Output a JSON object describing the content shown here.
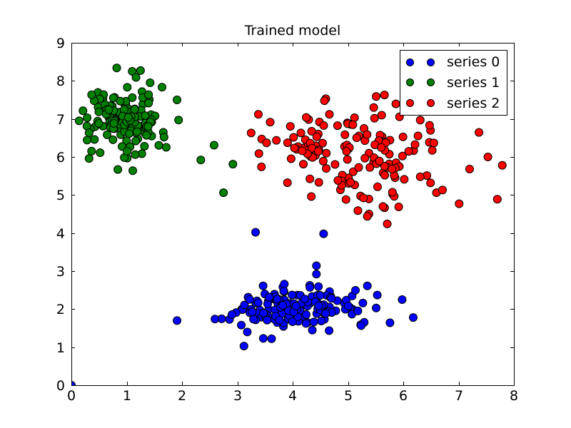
{
  "figure": {
    "background": "#ffffff",
    "frame_color": "#000000"
  },
  "chart_data": {
    "type": "scatter",
    "title": "Trained model",
    "xlabel": "",
    "ylabel": "",
    "xlim": [
      0,
      8
    ],
    "ylim": [
      0,
      9
    ],
    "xticks": [
      0,
      1,
      2,
      3,
      4,
      5,
      6,
      7,
      8
    ],
    "yticks": [
      0,
      1,
      2,
      3,
      4,
      5,
      6,
      7,
      8,
      9
    ],
    "grid": false,
    "tick_direction": "in",
    "marker": {
      "shape": "circle",
      "radius_px": 5.5,
      "edge_color": "#000000"
    },
    "legend": {
      "position": "upper right",
      "markers_per_entry": 2
    },
    "series": [
      {
        "name": "series 0",
        "color": "#0000ff",
        "cluster": {
          "center": [
            4.0,
            2.05
          ],
          "std": [
            0.62,
            0.28
          ],
          "count": 135,
          "seed": 42,
          "clip": {
            "x": [
              2.5,
              5.3
            ],
            "y": [
              1.3,
              2.75
            ]
          }
        },
        "points": [
          [
            0.0,
            0.0
          ],
          [
            1.91,
            1.7
          ],
          [
            3.33,
            4.02
          ],
          [
            4.56,
            3.98
          ],
          [
            4.43,
            3.14
          ],
          [
            3.12,
            1.03
          ],
          [
            3.18,
            1.4
          ],
          [
            3.47,
            1.23
          ],
          [
            3.62,
            1.22
          ],
          [
            5.53,
            2.37
          ],
          [
            5.98,
            2.25
          ],
          [
            6.18,
            1.78
          ],
          [
            5.76,
            1.64
          ],
          [
            5.27,
            2.16
          ],
          [
            5.51,
            2.03
          ],
          [
            5.23,
            1.59
          ],
          [
            5.35,
            2.61
          ],
          [
            4.43,
            2.92
          ]
        ]
      },
      {
        "name": "series 1",
        "color": "#008000",
        "cluster": {
          "center": [
            1.0,
            7.0
          ],
          "std": [
            0.34,
            0.45
          ],
          "count": 140,
          "seed": 7,
          "clip": {
            "x": [
              0.2,
              1.95
            ],
            "y": [
              5.8,
              8.2
            ]
          }
        },
        "points": [
          [
            2.34,
            5.92
          ],
          [
            2.58,
            6.31
          ],
          [
            2.92,
            5.81
          ],
          [
            2.75,
            5.06
          ],
          [
            0.32,
            5.96
          ],
          [
            1.91,
            7.5
          ],
          [
            0.14,
            6.95
          ],
          [
            1.01,
            5.97
          ],
          [
            0.84,
            5.67
          ],
          [
            1.11,
            5.64
          ],
          [
            0.82,
            8.34
          ],
          [
            1.1,
            8.25
          ],
          [
            1.25,
            8.27
          ]
        ]
      },
      {
        "name": "series 2",
        "color": "#ff0000",
        "cluster": {
          "center": [
            5.15,
            6.05
          ],
          "std": [
            0.88,
            0.58
          ],
          "count": 140,
          "seed": 1337,
          "clip": {
            "x": [
              3.4,
              7.55
            ],
            "y": [
              4.55,
              7.5
            ]
          }
        },
        "points": [
          [
            3.25,
            6.63
          ],
          [
            3.38,
            7.12
          ],
          [
            3.44,
            6.47
          ],
          [
            3.39,
            6.09
          ],
          [
            7.79,
            5.78
          ],
          [
            7.53,
            6.0
          ],
          [
            7.7,
            4.89
          ],
          [
            7.01,
            4.77
          ],
          [
            6.6,
            5.06
          ],
          [
            6.71,
            5.13
          ],
          [
            5.71,
            4.24
          ],
          [
            5.38,
            4.5
          ],
          [
            5.18,
            4.59
          ],
          [
            5.35,
            4.44
          ],
          [
            4.6,
            7.53
          ],
          [
            5.51,
            7.59
          ],
          [
            5.66,
            7.63
          ]
        ]
      }
    ]
  }
}
